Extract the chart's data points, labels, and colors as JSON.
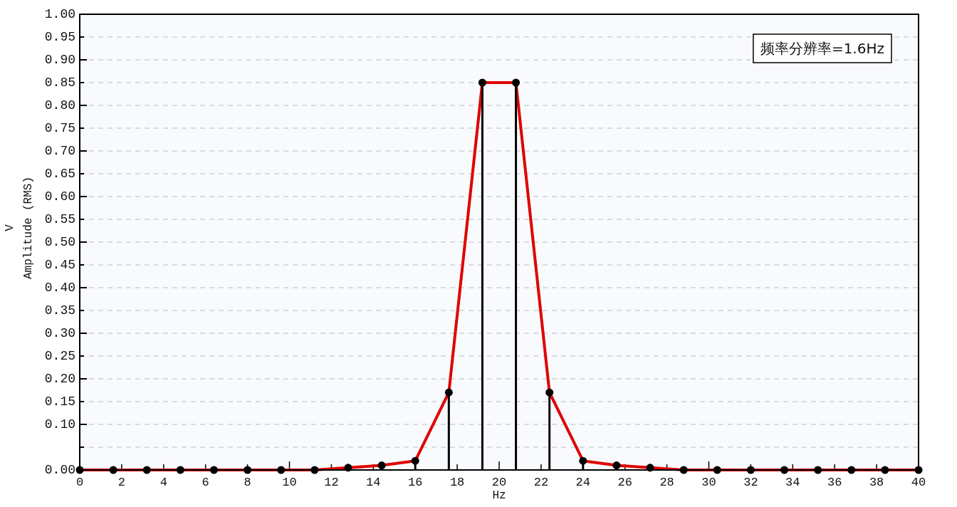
{
  "chart_data": {
    "type": "line",
    "xlabel": "Hz",
    "ylabel": "V\nAmplitude (RMS)",
    "x": [
      0,
      1.6,
      3.2,
      4.8,
      6.4,
      8,
      9.6,
      11.2,
      12.8,
      14.4,
      16,
      17.6,
      19.2,
      20.8,
      22.4,
      24,
      25.6,
      27.2,
      28.8,
      30.4,
      32,
      33.6,
      35.2,
      36.8,
      38.4,
      40
    ],
    "series": [
      {
        "type": "line",
        "color": "#e00000",
        "marker": "none",
        "values": [
          0,
          0,
          0,
          0,
          0,
          0,
          0,
          0,
          0.005,
          0.01,
          0.02,
          0.17,
          0.85,
          0.85,
          0.17,
          0.02,
          0.01,
          0.005,
          0,
          0,
          0,
          0,
          0,
          0,
          0,
          0
        ]
      },
      {
        "type": "lollipop",
        "color": "#000000",
        "marker": "circle",
        "values": [
          0,
          0,
          0,
          0,
          0,
          0,
          0,
          0,
          0.005,
          0.01,
          0.02,
          0.17,
          0.85,
          0.85,
          0.17,
          0.02,
          0.01,
          0.005,
          0,
          0,
          0,
          0,
          0,
          0,
          0,
          0
        ]
      }
    ],
    "xlim": [
      0,
      40
    ],
    "xticks": [
      0,
      2,
      4,
      6,
      8,
      10,
      12,
      14,
      16,
      18,
      20,
      22,
      24,
      26,
      28,
      30,
      32,
      34,
      36,
      38,
      40
    ],
    "ylim": [
      0,
      1
    ],
    "yticks": [
      {
        "value": 0,
        "label": "0.00"
      },
      {
        "value": 0.05,
        "label": null
      },
      {
        "value": 0.1,
        "label": "0.10"
      },
      {
        "value": 0.15,
        "label": "0.15"
      },
      {
        "value": 0.2,
        "label": "0.20"
      },
      {
        "value": 0.25,
        "label": "0.25"
      },
      {
        "value": 0.3,
        "label": "0.30"
      },
      {
        "value": 0.35,
        "label": "0.35"
      },
      {
        "value": 0.4,
        "label": "0.40"
      },
      {
        "value": 0.45,
        "label": "0.45"
      },
      {
        "value": 0.5,
        "label": "0.50"
      },
      {
        "value": 0.55,
        "label": "0.55"
      },
      {
        "value": 0.6,
        "label": "0.60"
      },
      {
        "value": 0.65,
        "label": "0.65"
      },
      {
        "value": 0.7,
        "label": "0.70"
      },
      {
        "value": 0.75,
        "label": "0.75"
      },
      {
        "value": 0.8,
        "label": "0.80"
      },
      {
        "value": 0.85,
        "label": "0.85"
      },
      {
        "value": 0.9,
        "label": "0.90"
      },
      {
        "value": 0.95,
        "label": "0.95"
      },
      {
        "value": 1,
        "label": "1.00"
      }
    ],
    "grid": "y",
    "annotations": [
      "频率分辨率=1.6Hz"
    ]
  }
}
